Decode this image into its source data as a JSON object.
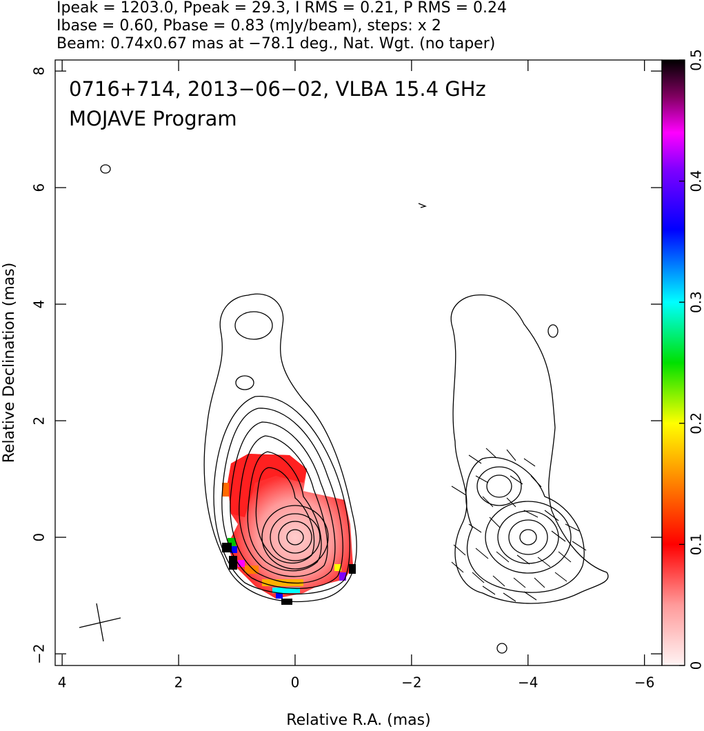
{
  "chart_data": {
    "type": "radio-map",
    "header": [
      "Ipeak = 1203.0, Ppeak = 29.3, I RMS = 0.21, P RMS = 0.24",
      "Ibase = 0.60, Pbase = 0.83 (mJy/beam), steps: x 2",
      "Beam: 0.74x0.67 mas at −78.1 deg., Nat. Wgt. (no taper)"
    ],
    "title": "0716+714, 2013−06−02, VLBA 15.4 GHz",
    "subtitle": "MOJAVE Program",
    "x_label": "Relative R.A. (mas)",
    "y_label": "Relative Declination (mas)",
    "xlim": [
      4.12,
      -6.3
    ],
    "ylim": [
      -2.2,
      8.19
    ],
    "xticks": [
      4,
      2,
      0,
      {
        "value": -2,
        "label": "−2"
      },
      {
        "value": -4,
        "label": "−4"
      },
      {
        "value": -6,
        "label": "−6"
      }
    ],
    "yticks": [
      {
        "value": -2,
        "label": "−2"
      },
      0,
      2,
      4,
      6,
      8
    ],
    "colorbar_lim": [
      0,
      0.5
    ],
    "colorbar_ticks": [
      0,
      0.1,
      0.2,
      0.3,
      0.4,
      0.5
    ]
  }
}
